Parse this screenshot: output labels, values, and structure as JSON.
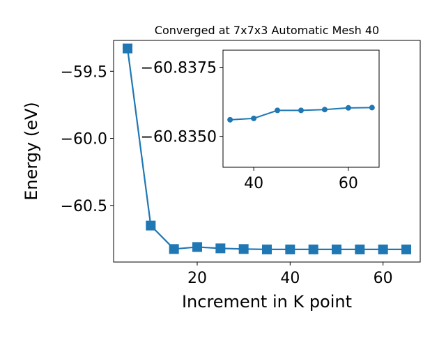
{
  "chart_data": [
    {
      "id": "main",
      "type": "line",
      "title": "Converged at 7x7x3 Automatic Mesh 40",
      "xlabel": "Increment in K point",
      "ylabel": "Energy (eV)",
      "xlim": [
        2.0,
        68.0
      ],
      "ylim": [
        -60.922,
        -59.27
      ],
      "xticks": [
        20,
        40,
        60
      ],
      "yticks": [
        -59.5,
        -60.0,
        -60.5
      ],
      "ytick_labels": [
        "−59.5",
        "−60.0",
        "−60.5"
      ],
      "marker": "square",
      "series": [
        {
          "color": "#1f77b4",
          "x": [
            5,
            10,
            15,
            20,
            25,
            30,
            35,
            40,
            45,
            50,
            55,
            60,
            65
          ],
          "y": [
            -59.33,
            -60.65,
            -60.825,
            -60.81,
            -60.82,
            -60.825,
            -60.828,
            -60.828,
            -60.828,
            -60.828,
            -60.828,
            -60.828,
            -60.828
          ]
        }
      ]
    },
    {
      "id": "inset",
      "type": "line",
      "xlim": [
        33.5,
        66.5
      ],
      "ylim": [
        -60.83388,
        -60.83812
      ],
      "xticks": [
        40,
        60
      ],
      "yticks": [
        -60.8375,
        -60.835
      ],
      "ytick_labels": [
        "−60.8375",
        "−60.8350"
      ],
      "marker": "circle",
      "series": [
        {
          "color": "#1f77b4",
          "x": [
            35,
            40,
            45,
            50,
            55,
            60,
            65
          ],
          "y": [
            -60.8356,
            -60.83565,
            -60.83594,
            -60.83594,
            -60.83597,
            -60.83603,
            -60.83604
          ]
        }
      ]
    }
  ]
}
